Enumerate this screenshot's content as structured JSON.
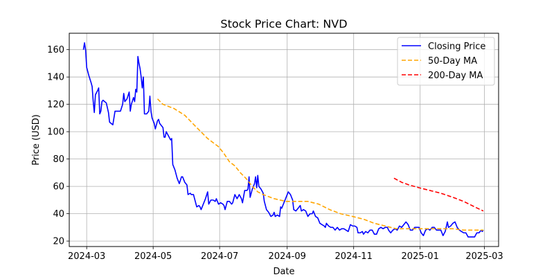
{
  "chart_data": {
    "type": "line",
    "title": "Stock Price Chart: NVD",
    "xlabel": "Date",
    "ylabel": "Price (USD)",
    "ylim": [
      16,
      172
    ],
    "xlim": [
      "2024-02-14",
      "2025-03-14"
    ],
    "x_ticks": [
      "2024-03-01",
      "2024-05-01",
      "2024-07-01",
      "2024-09-01",
      "2024-11-01",
      "2025-01-01",
      "2025-03-01"
    ],
    "x_tick_labels": [
      "2024-03",
      "2024-05",
      "2024-07",
      "2024-09",
      "2024-11",
      "2025-01",
      "2025-03"
    ],
    "y_ticks": [
      20,
      40,
      60,
      80,
      100,
      120,
      140,
      160
    ],
    "grid": true,
    "legend_position": "top-right",
    "colors": {
      "closing": "#0000ff",
      "ma50": "#ffa500",
      "ma200": "#ff0000"
    },
    "series": [
      {
        "name": "Closing Price",
        "style": "solid",
        "points": [
          [
            "2024-02-27",
            160
          ],
          [
            "2024-02-28",
            165
          ],
          [
            "2024-02-29",
            160
          ],
          [
            "2024-03-01",
            147
          ],
          [
            "2024-03-03",
            141
          ],
          [
            "2024-03-05",
            136
          ],
          [
            "2024-03-06",
            133
          ],
          [
            "2024-03-07",
            122
          ],
          [
            "2024-03-08",
            114
          ],
          [
            "2024-03-09",
            127
          ],
          [
            "2024-03-11",
            130
          ],
          [
            "2024-03-12",
            132
          ],
          [
            "2024-03-13",
            113
          ],
          [
            "2024-03-14",
            115
          ],
          [
            "2024-03-15",
            122
          ],
          [
            "2024-03-16",
            123
          ],
          [
            "2024-03-19",
            121
          ],
          [
            "2024-03-21",
            114
          ],
          [
            "2024-03-22",
            107
          ],
          [
            "2024-03-25",
            105
          ],
          [
            "2024-03-27",
            115
          ],
          [
            "2024-03-29",
            115
          ],
          [
            "2024-04-01",
            115
          ],
          [
            "2024-04-03",
            120
          ],
          [
            "2024-04-04",
            128
          ],
          [
            "2024-04-05",
            122
          ],
          [
            "2024-04-07",
            124
          ],
          [
            "2024-04-09",
            129
          ],
          [
            "2024-04-10",
            115
          ],
          [
            "2024-04-11",
            120
          ],
          [
            "2024-04-13",
            125
          ],
          [
            "2024-04-14",
            122
          ],
          [
            "2024-04-15",
            131
          ],
          [
            "2024-04-16",
            129
          ],
          [
            "2024-04-17",
            155
          ],
          [
            "2024-04-18",
            150
          ],
          [
            "2024-04-19",
            146
          ],
          [
            "2024-04-20",
            140
          ],
          [
            "2024-04-21",
            132
          ],
          [
            "2024-04-22",
            140
          ],
          [
            "2024-04-23",
            113
          ],
          [
            "2024-04-25",
            113
          ],
          [
            "2024-04-27",
            115
          ],
          [
            "2024-04-28",
            126
          ],
          [
            "2024-04-29",
            115
          ],
          [
            "2024-04-30",
            110
          ],
          [
            "2024-05-02",
            106
          ],
          [
            "2024-05-03",
            102
          ],
          [
            "2024-05-05",
            108
          ],
          [
            "2024-05-06",
            109
          ],
          [
            "2024-05-07",
            106
          ],
          [
            "2024-05-09",
            104
          ],
          [
            "2024-05-10",
            103
          ],
          [
            "2024-05-11",
            96
          ],
          [
            "2024-05-12",
            96
          ],
          [
            "2024-05-13",
            100
          ],
          [
            "2024-05-15",
            97
          ],
          [
            "2024-05-17",
            94
          ],
          [
            "2024-05-18",
            95
          ],
          [
            "2024-05-19",
            76
          ],
          [
            "2024-05-21",
            72
          ],
          [
            "2024-05-23",
            66
          ],
          [
            "2024-05-25",
            62
          ],
          [
            "2024-05-27",
            67
          ],
          [
            "2024-05-28",
            67
          ],
          [
            "2024-05-30",
            63
          ],
          [
            "2024-06-01",
            61
          ],
          [
            "2024-06-02",
            54
          ],
          [
            "2024-06-04",
            55
          ],
          [
            "2024-06-05",
            54
          ],
          [
            "2024-06-07",
            54
          ],
          [
            "2024-06-10",
            45
          ],
          [
            "2024-06-12",
            46
          ],
          [
            "2024-06-13",
            45
          ],
          [
            "2024-06-14",
            43
          ],
          [
            "2024-06-16",
            47
          ],
          [
            "2024-06-18",
            51
          ],
          [
            "2024-06-20",
            56
          ],
          [
            "2024-06-21",
            47
          ],
          [
            "2024-06-23",
            50
          ],
          [
            "2024-06-25",
            50
          ],
          [
            "2024-06-27",
            49
          ],
          [
            "2024-06-28",
            51
          ],
          [
            "2024-06-30",
            47
          ],
          [
            "2024-07-02",
            48
          ],
          [
            "2024-07-04",
            47
          ],
          [
            "2024-07-05",
            46
          ],
          [
            "2024-07-06",
            43
          ],
          [
            "2024-07-08",
            49
          ],
          [
            "2024-07-10",
            49
          ],
          [
            "2024-07-12",
            47
          ],
          [
            "2024-07-13",
            48
          ],
          [
            "2024-07-15",
            54
          ],
          [
            "2024-07-17",
            51
          ],
          [
            "2024-07-19",
            54
          ],
          [
            "2024-07-21",
            51
          ],
          [
            "2024-07-22",
            48
          ],
          [
            "2024-07-24",
            57
          ],
          [
            "2024-07-26",
            57
          ],
          [
            "2024-07-27",
            58
          ],
          [
            "2024-07-28",
            67
          ],
          [
            "2024-07-29",
            52
          ],
          [
            "2024-07-31",
            58
          ],
          [
            "2024-08-02",
            62
          ],
          [
            "2024-08-03",
            67
          ],
          [
            "2024-08-04",
            59
          ],
          [
            "2024-08-05",
            68
          ],
          [
            "2024-08-06",
            60
          ],
          [
            "2024-08-08",
            58
          ],
          [
            "2024-08-10",
            55
          ],
          [
            "2024-08-11",
            49
          ],
          [
            "2024-08-13",
            43
          ],
          [
            "2024-08-15",
            41
          ],
          [
            "2024-08-17",
            38
          ],
          [
            "2024-08-19",
            39
          ],
          [
            "2024-08-20",
            41
          ],
          [
            "2024-08-21",
            38
          ],
          [
            "2024-08-23",
            39
          ],
          [
            "2024-08-25",
            38
          ],
          [
            "2024-08-26",
            45
          ],
          [
            "2024-08-27",
            44
          ],
          [
            "2024-08-29",
            48
          ],
          [
            "2024-08-31",
            52
          ],
          [
            "2024-09-02",
            56
          ],
          [
            "2024-09-04",
            54
          ],
          [
            "2024-09-06",
            50
          ],
          [
            "2024-09-07",
            43
          ],
          [
            "2024-09-09",
            42
          ],
          [
            "2024-09-11",
            44
          ],
          [
            "2024-09-13",
            46
          ],
          [
            "2024-09-14",
            42
          ],
          [
            "2024-09-16",
            43
          ],
          [
            "2024-09-18",
            42
          ],
          [
            "2024-09-20",
            38
          ],
          [
            "2024-09-22",
            40
          ],
          [
            "2024-09-24",
            40
          ],
          [
            "2024-09-25",
            42
          ],
          [
            "2024-09-27",
            38
          ],
          [
            "2024-09-29",
            37
          ],
          [
            "2024-10-01",
            33
          ],
          [
            "2024-10-03",
            32
          ],
          [
            "2024-10-05",
            31
          ],
          [
            "2024-10-06",
            30
          ],
          [
            "2024-10-07",
            33
          ],
          [
            "2024-10-09",
            31
          ],
          [
            "2024-10-11",
            30
          ],
          [
            "2024-10-13",
            30
          ],
          [
            "2024-10-15",
            28
          ],
          [
            "2024-10-17",
            30
          ],
          [
            "2024-10-19",
            28
          ],
          [
            "2024-10-21",
            29
          ],
          [
            "2024-10-23",
            29
          ],
          [
            "2024-10-25",
            28
          ],
          [
            "2024-10-27",
            27
          ],
          [
            "2024-10-29",
            32
          ],
          [
            "2024-10-31",
            31
          ],
          [
            "2024-11-02",
            31
          ],
          [
            "2024-11-04",
            30
          ],
          [
            "2024-11-05",
            26
          ],
          [
            "2024-11-07",
            26
          ],
          [
            "2024-11-09",
            27
          ],
          [
            "2024-11-10",
            25
          ],
          [
            "2024-11-12",
            27
          ],
          [
            "2024-11-14",
            26
          ],
          [
            "2024-11-16",
            28
          ],
          [
            "2024-11-18",
            28
          ],
          [
            "2024-11-20",
            25
          ],
          [
            "2024-11-22",
            25
          ],
          [
            "2024-11-24",
            29
          ],
          [
            "2024-11-26",
            30
          ],
          [
            "2024-11-28",
            29
          ],
          [
            "2024-11-30",
            30
          ],
          [
            "2024-12-02",
            30
          ],
          [
            "2024-12-03",
            28
          ],
          [
            "2024-12-05",
            26
          ],
          [
            "2024-12-07",
            28
          ],
          [
            "2024-12-09",
            29
          ],
          [
            "2024-12-11",
            28
          ],
          [
            "2024-12-13",
            31
          ],
          [
            "2024-12-15",
            30
          ],
          [
            "2024-12-17",
            32
          ],
          [
            "2024-12-19",
            34
          ],
          [
            "2024-12-21",
            32
          ],
          [
            "2024-12-23",
            28
          ],
          [
            "2024-12-25",
            28
          ],
          [
            "2024-12-27",
            30
          ],
          [
            "2024-12-29",
            30
          ],
          [
            "2024-12-31",
            30
          ],
          [
            "2025-01-02",
            26
          ],
          [
            "2025-01-04",
            24
          ],
          [
            "2025-01-06",
            28
          ],
          [
            "2025-01-08",
            29
          ],
          [
            "2025-01-10",
            28
          ],
          [
            "2025-01-12",
            30
          ],
          [
            "2025-01-14",
            30
          ],
          [
            "2025-01-16",
            28
          ],
          [
            "2025-01-18",
            28
          ],
          [
            "2025-01-20",
            28
          ],
          [
            "2025-01-22",
            24
          ],
          [
            "2025-01-24",
            27
          ],
          [
            "2025-01-26",
            34
          ],
          [
            "2025-01-27",
            30
          ],
          [
            "2025-01-29",
            31
          ],
          [
            "2025-01-31",
            33
          ],
          [
            "2025-02-02",
            34
          ],
          [
            "2025-02-04",
            30
          ],
          [
            "2025-02-06",
            28
          ],
          [
            "2025-02-08",
            27
          ],
          [
            "2025-02-10",
            26
          ],
          [
            "2025-02-12",
            26
          ],
          [
            "2025-02-14",
            23
          ],
          [
            "2025-02-16",
            23
          ],
          [
            "2025-02-18",
            23
          ],
          [
            "2025-02-20",
            23
          ],
          [
            "2025-02-22",
            26
          ],
          [
            "2025-02-24",
            26
          ],
          [
            "2025-02-26",
            28
          ],
          [
            "2025-02-27",
            27
          ],
          [
            "2025-02-28",
            28
          ]
        ]
      },
      {
        "name": "50-Day MA",
        "style": "dashed",
        "points": [
          [
            "2024-05-05",
            124
          ],
          [
            "2024-05-10",
            120
          ],
          [
            "2024-05-20",
            117
          ],
          [
            "2024-05-30",
            112
          ],
          [
            "2024-06-10",
            103
          ],
          [
            "2024-06-20",
            95
          ],
          [
            "2024-06-30",
            89
          ],
          [
            "2024-07-05",
            84
          ],
          [
            "2024-07-10",
            78
          ],
          [
            "2024-07-15",
            75
          ],
          [
            "2024-07-20",
            70
          ],
          [
            "2024-07-25",
            66
          ],
          [
            "2024-07-31",
            60
          ],
          [
            "2024-08-05",
            56
          ],
          [
            "2024-08-10",
            54
          ],
          [
            "2024-08-20",
            51
          ],
          [
            "2024-08-31",
            49
          ],
          [
            "2024-09-10",
            49
          ],
          [
            "2024-09-20",
            49
          ],
          [
            "2024-09-30",
            47
          ],
          [
            "2024-10-10",
            43
          ],
          [
            "2024-10-20",
            40
          ],
          [
            "2024-10-31",
            38
          ],
          [
            "2024-11-10",
            36
          ],
          [
            "2024-11-20",
            33
          ],
          [
            "2024-11-30",
            31
          ],
          [
            "2024-12-10",
            29
          ],
          [
            "2024-12-20",
            29
          ],
          [
            "2024-12-31",
            29
          ],
          [
            "2025-01-10",
            29
          ],
          [
            "2025-01-20",
            29
          ],
          [
            "2025-01-31",
            29
          ],
          [
            "2025-02-10",
            28
          ],
          [
            "2025-02-20",
            28
          ],
          [
            "2025-02-28",
            28
          ]
        ]
      },
      {
        "name": "200-Day MA",
        "style": "dashed",
        "points": [
          [
            "2024-12-08",
            66
          ],
          [
            "2024-12-15",
            63
          ],
          [
            "2024-12-22",
            61
          ],
          [
            "2024-12-31",
            59
          ],
          [
            "2025-01-10",
            57
          ],
          [
            "2025-01-20",
            55
          ],
          [
            "2025-01-31",
            52
          ],
          [
            "2025-02-10",
            49
          ],
          [
            "2025-02-20",
            45
          ],
          [
            "2025-02-28",
            42
          ]
        ]
      }
    ]
  }
}
